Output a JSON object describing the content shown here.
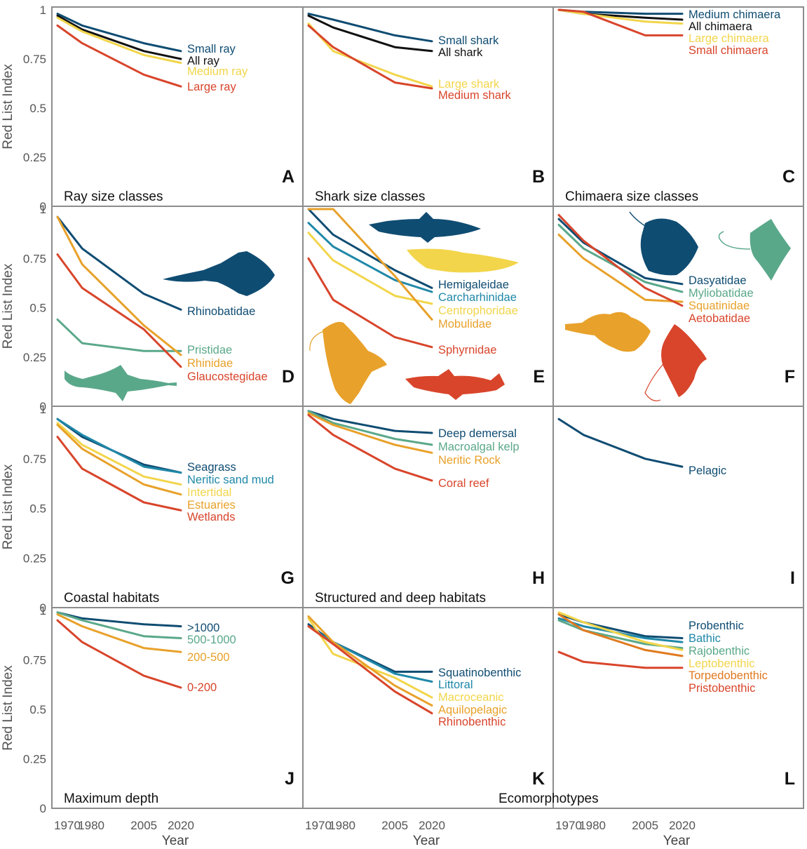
{
  "y_axis_label": "Red List Index",
  "x_axis_label": "Year",
  "colors": {
    "navy": "#0f4c72",
    "teal": "#1f88a8",
    "green": "#5aa88a",
    "yellow": "#f2d54b",
    "orange": "#e8a12a",
    "dark_orange": "#e07a1f",
    "red": "#d8452b",
    "black": "#111111",
    "frame": "#8c8c8c"
  },
  "chart_data": [
    {
      "type": "line",
      "letter": "A",
      "title": "Ray size classes",
      "x": [
        1970,
        1980,
        2005,
        2020
      ],
      "ylim": [
        0,
        1
      ],
      "series": [
        {
          "name": "Small ray",
          "color": "#0f4c72",
          "values": [
            0.98,
            0.92,
            0.83,
            0.79
          ]
        },
        {
          "name": "All ray",
          "color": "#111111",
          "values": [
            0.97,
            0.9,
            0.79,
            0.75
          ]
        },
        {
          "name": "Medium ray",
          "color": "#f2d54b",
          "values": [
            0.96,
            0.89,
            0.77,
            0.73
          ]
        },
        {
          "name": "Large ray",
          "color": "#d8452b",
          "values": [
            0.92,
            0.83,
            0.67,
            0.61
          ]
        }
      ]
    },
    {
      "type": "line",
      "letter": "B",
      "title": "Shark size classes",
      "x": [
        1970,
        1980,
        2005,
        2020
      ],
      "ylim": [
        0,
        1
      ],
      "series": [
        {
          "name": "Small shark",
          "color": "#0f4c72",
          "values": [
            0.98,
            0.95,
            0.87,
            0.84
          ]
        },
        {
          "name": "All shark",
          "color": "#111111",
          "values": [
            0.97,
            0.91,
            0.81,
            0.79
          ]
        },
        {
          "name": "Large shark",
          "color": "#f2d54b",
          "values": [
            0.93,
            0.79,
            0.67,
            0.61
          ]
        },
        {
          "name": "Medium shark",
          "color": "#d8452b",
          "values": [
            0.92,
            0.81,
            0.63,
            0.6
          ]
        }
      ]
    },
    {
      "type": "line",
      "letter": "C",
      "title": "Chimaera size classes",
      "x": [
        1970,
        1980,
        2005,
        2020
      ],
      "ylim": [
        0,
        1
      ],
      "series": [
        {
          "name": "Medium chimaera",
          "color": "#0f4c72",
          "values": [
            1.0,
            0.99,
            0.98,
            0.98
          ]
        },
        {
          "name": "All chimaera",
          "color": "#111111",
          "values": [
            1.0,
            0.98,
            0.96,
            0.95
          ]
        },
        {
          "name": "Large chimaera",
          "color": "#f2d54b",
          "values": [
            1.0,
            0.98,
            0.94,
            0.93
          ]
        },
        {
          "name": "Small chimaera",
          "color": "#d8452b",
          "values": [
            1.0,
            0.99,
            0.87,
            0.87
          ]
        }
      ]
    },
    {
      "type": "line",
      "letter": "D",
      "title": "",
      "x": [
        1970,
        1980,
        2005,
        2020
      ],
      "ylim": [
        0,
        1
      ],
      "series": [
        {
          "name": "Rhinobatidae",
          "color": "#0f4c72",
          "values": [
            0.96,
            0.8,
            0.57,
            0.49
          ]
        },
        {
          "name": "Pristidae",
          "color": "#5aa88a",
          "values": [
            0.44,
            0.32,
            0.28,
            0.28
          ]
        },
        {
          "name": "Rhinidae",
          "color": "#e8a12a",
          "values": [
            0.96,
            0.72,
            0.41,
            0.26
          ]
        },
        {
          "name": "Glaucostegidae",
          "color": "#d8452b",
          "values": [
            0.77,
            0.6,
            0.39,
            0.2
          ]
        }
      ]
    },
    {
      "type": "line",
      "letter": "E",
      "title": "",
      "x": [
        1970,
        1980,
        2005,
        2020
      ],
      "ylim": [
        0,
        1
      ],
      "series": [
        {
          "name": "Hemigaleidae",
          "color": "#0f4c72",
          "values": [
            1.0,
            0.87,
            0.69,
            0.6
          ]
        },
        {
          "name": "Carcharhinidae",
          "color": "#1f88a8",
          "values": [
            0.93,
            0.81,
            0.64,
            0.58
          ]
        },
        {
          "name": "Centrophoridae",
          "color": "#f2d54b",
          "values": [
            0.88,
            0.74,
            0.56,
            0.52
          ]
        },
        {
          "name": "Mobulidae",
          "color": "#e8a12a",
          "values": [
            1.0,
            1.0,
            0.66,
            0.44
          ]
        },
        {
          "name": "Sphyrnidae",
          "color": "#d8452b",
          "values": [
            0.75,
            0.54,
            0.35,
            0.3
          ]
        }
      ]
    },
    {
      "type": "line",
      "letter": "F",
      "title": "",
      "x": [
        1970,
        1980,
        2005,
        2020
      ],
      "ylim": [
        0,
        1
      ],
      "series": [
        {
          "name": "Dasyatidae",
          "color": "#0f4c72",
          "values": [
            0.95,
            0.83,
            0.65,
            0.62
          ]
        },
        {
          "name": "Myliobatidae",
          "color": "#5aa88a",
          "values": [
            0.92,
            0.8,
            0.63,
            0.58
          ]
        },
        {
          "name": "Squatinidae",
          "color": "#e8a12a",
          "values": [
            0.87,
            0.75,
            0.54,
            0.53
          ]
        },
        {
          "name": "Aetobatidae",
          "color": "#d8452b",
          "values": [
            0.97,
            0.84,
            0.6,
            0.51
          ]
        }
      ]
    },
    {
      "type": "line",
      "letter": "G",
      "title": "Coastal habitats",
      "x": [
        1970,
        1980,
        2005,
        2020
      ],
      "ylim": [
        0,
        1
      ],
      "series": [
        {
          "name": "Seagrass",
          "color": "#0f4c72",
          "values": [
            0.95,
            0.86,
            0.72,
            0.68
          ]
        },
        {
          "name": "Neritic sand mud",
          "color": "#1f88a8",
          "values": [
            0.95,
            0.87,
            0.71,
            0.68
          ]
        },
        {
          "name": "Intertidal",
          "color": "#f2d54b",
          "values": [
            0.93,
            0.82,
            0.66,
            0.62
          ]
        },
        {
          "name": "Estuaries",
          "color": "#e8a12a",
          "values": [
            0.92,
            0.8,
            0.62,
            0.57
          ]
        },
        {
          "name": "Wetlands",
          "color": "#d8452b",
          "values": [
            0.86,
            0.7,
            0.53,
            0.49
          ]
        }
      ]
    },
    {
      "type": "line",
      "letter": "H",
      "title": "Structured and deep habitats",
      "x": [
        1970,
        1980,
        2005,
        2020
      ],
      "ylim": [
        0,
        1
      ],
      "series": [
        {
          "name": "Deep demersal",
          "color": "#0f4c72",
          "values": [
            0.99,
            0.95,
            0.89,
            0.88
          ]
        },
        {
          "name": "Macroalgal kelp",
          "color": "#5aa88a",
          "values": [
            0.99,
            0.93,
            0.85,
            0.82
          ]
        },
        {
          "name": "Neritic Rock",
          "color": "#e8a12a",
          "values": [
            0.98,
            0.92,
            0.82,
            0.78
          ]
        },
        {
          "name": "Coral reef",
          "color": "#d8452b",
          "values": [
            0.97,
            0.87,
            0.7,
            0.64
          ]
        }
      ]
    },
    {
      "type": "line",
      "letter": "I",
      "title": "",
      "x": [
        1970,
        1980,
        2005,
        2020
      ],
      "ylim": [
        0,
        1
      ],
      "series": [
        {
          "name": "Pelagic",
          "color": "#0f4c72",
          "values": [
            0.95,
            0.87,
            0.75,
            0.71
          ]
        }
      ]
    },
    {
      "type": "line",
      "letter": "J",
      "title": "Maximum depth",
      "x": [
        1970,
        1980,
        2005,
        2020
      ],
      "ylim": [
        0,
        1
      ],
      "series": [
        {
          "name": ">1000",
          "color": "#0f4c72",
          "values": [
            0.99,
            0.96,
            0.93,
            0.92
          ]
        },
        {
          "name": "500-1000",
          "color": "#5aa88a",
          "values": [
            0.99,
            0.95,
            0.87,
            0.86
          ]
        },
        {
          "name": "200-500",
          "color": "#e8a12a",
          "values": [
            0.98,
            0.92,
            0.81,
            0.79
          ]
        },
        {
          "name": "0-200",
          "color": "#d8452b",
          "values": [
            0.95,
            0.84,
            0.67,
            0.61
          ]
        }
      ]
    },
    {
      "type": "line",
      "letter": "K",
      "title": "",
      "x": [
        1970,
        1980,
        2005,
        2020
      ],
      "ylim": [
        0,
        1
      ],
      "series": [
        {
          "name": "Squatinobenthic",
          "color": "#0f4c72",
          "values": [
            0.93,
            0.84,
            0.69,
            0.69
          ]
        },
        {
          "name": "Littoral",
          "color": "#1f88a8",
          "values": [
            0.92,
            0.84,
            0.68,
            0.64
          ]
        },
        {
          "name": "Macroceanic",
          "color": "#f2d54b",
          "values": [
            0.96,
            0.78,
            0.66,
            0.56
          ]
        },
        {
          "name": "Aquilopelagic",
          "color": "#e8a12a",
          "values": [
            0.97,
            0.84,
            0.62,
            0.52
          ]
        },
        {
          "name": "Rhinobenthic",
          "color": "#d8452b",
          "values": [
            0.92,
            0.83,
            0.59,
            0.48
          ]
        }
      ]
    },
    {
      "type": "line",
      "letter": "L",
      "title": "Ecomorphotypes",
      "x": [
        1970,
        1980,
        2005,
        2020
      ],
      "ylim": [
        0,
        1
      ],
      "series": [
        {
          "name": "Probenthic",
          "color": "#0f4c72",
          "values": [
            0.98,
            0.94,
            0.87,
            0.86
          ]
        },
        {
          "name": "Bathic",
          "color": "#1f88a8",
          "values": [
            0.96,
            0.92,
            0.86,
            0.84
          ]
        },
        {
          "name": "Rajobenthic",
          "color": "#5aa88a",
          "values": [
            0.95,
            0.9,
            0.83,
            0.81
          ]
        },
        {
          "name": "Leptobenthic",
          "color": "#f2d54b",
          "values": [
            0.99,
            0.94,
            0.84,
            0.8
          ]
        },
        {
          "name": "Torpedobenthic",
          "color": "#e07a1f",
          "values": [
            0.98,
            0.9,
            0.8,
            0.77
          ]
        },
        {
          "name": "Pristobenthic",
          "color": "#d8452b",
          "values": [
            0.79,
            0.74,
            0.71,
            0.71
          ]
        }
      ]
    }
  ]
}
